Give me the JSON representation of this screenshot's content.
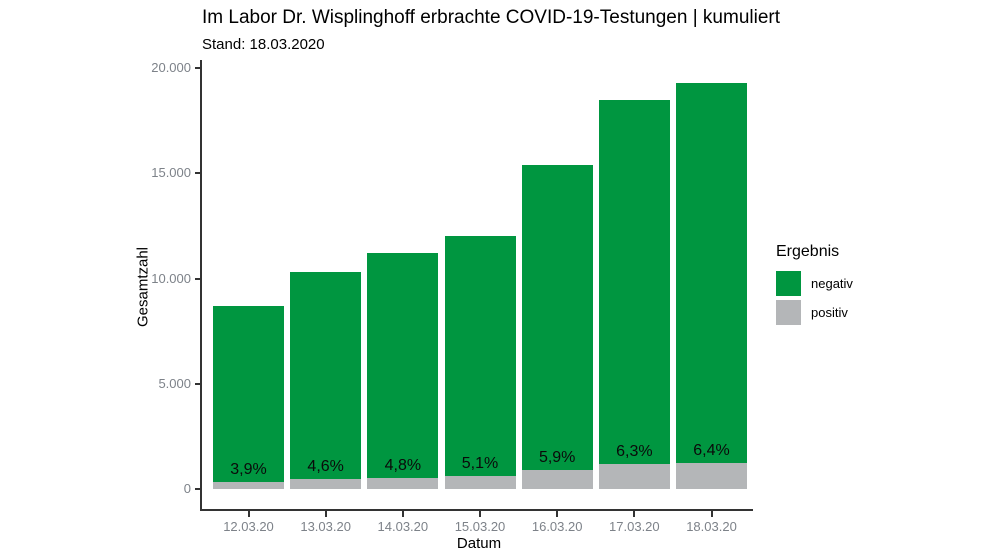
{
  "header": {
    "title": "Im Labor Dr. Wisplinghoff erbrachte COVID-19-Testungen | kumuliert",
    "subtitle": "Stand: 18.03.2020"
  },
  "chart_data": {
    "type": "bar",
    "stacked": true,
    "title": "Im Labor Dr. Wisplinghoff erbrachte COVID-19-Testungen | kumuliert",
    "subtitle": "Stand: 18.03.2020",
    "xlabel": "Datum",
    "ylabel": "Gesamtzahl",
    "categories": [
      "12.03.20",
      "13.03.20",
      "14.03.20",
      "15.03.20",
      "16.03.20",
      "17.03.20",
      "18.03.20"
    ],
    "stack_order": [
      "positiv",
      "negativ"
    ],
    "series": [
      {
        "name": "negativ",
        "color": "#009640",
        "values": [
          8360,
          9825,
          10660,
          11390,
          14490,
          17335,
          18065
        ]
      },
      {
        "name": "positiv",
        "color": "#b4b6b8",
        "values": [
          340,
          475,
          540,
          610,
          910,
          1165,
          1235
        ]
      }
    ],
    "totals": [
      8700,
      10300,
      11200,
      12000,
      15400,
      18500,
      19300
    ],
    "bar_labels": [
      "3,9%",
      "4,6%",
      "4,8%",
      "5,1%",
      "5,9%",
      "6,3%",
      "6,4%"
    ],
    "ylim": [
      0,
      20000
    ],
    "yticks": [
      {
        "value": 0,
        "label": "0"
      },
      {
        "value": 5000,
        "label": "5.000"
      },
      {
        "value": 10000,
        "label": "10.000"
      },
      {
        "value": 15000,
        "label": "15.000"
      },
      {
        "value": 20000,
        "label": "20.000"
      }
    ],
    "grid": false,
    "legend": {
      "title": "Ergebnis",
      "position": "right",
      "items": [
        {
          "label": "negativ",
          "color": "#009640"
        },
        {
          "label": "positiv",
          "color": "#b4b6b8"
        }
      ]
    }
  },
  "colors": {
    "negativ": "#009640",
    "positiv": "#b4b6b8",
    "axis_line": "#333333",
    "tick_label": "#7d8289",
    "text": "#000000",
    "background": "#ffffff"
  }
}
